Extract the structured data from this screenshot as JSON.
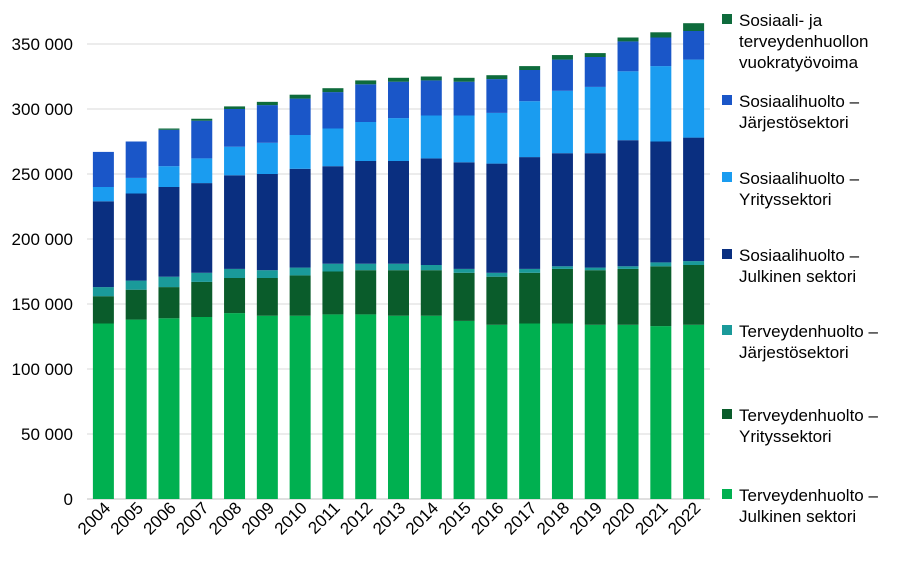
{
  "chart_data": {
    "type": "bar",
    "stacked": true,
    "title": "",
    "xlabel": "",
    "ylabel": "",
    "ylim": [
      0,
      350000
    ],
    "yticks": [
      "0",
      "50 000",
      "100 000",
      "150 000",
      "200 000",
      "250 000",
      "300 000",
      "350 000"
    ],
    "grid": true,
    "legend_position": "right",
    "categories": [
      "2004",
      "2005",
      "2006",
      "2007",
      "2008",
      "2009",
      "2010",
      "2011",
      "2012",
      "2013",
      "2014",
      "2015",
      "2016",
      "2017",
      "2018",
      "2019",
      "2020",
      "2021",
      "2022"
    ],
    "series": [
      {
        "name": "Terveydenhuolto –\nJulkinen sektori",
        "color": "#00b050",
        "values": [
          135000,
          138000,
          139000,
          140000,
          143000,
          141000,
          141000,
          142000,
          142000,
          141000,
          141000,
          137000,
          134000,
          135000,
          135000,
          134000,
          134000,
          133000,
          134000
        ]
      },
      {
        "name": "Terveydenhuolto –\nYrityssektori",
        "color": "#0a5c2b",
        "values": [
          21000,
          23000,
          24000,
          27000,
          27000,
          29000,
          31000,
          33000,
          34000,
          35000,
          35000,
          37000,
          37000,
          39000,
          42000,
          42000,
          43000,
          46000,
          46000
        ]
      },
      {
        "name": "Terveydenhuolto –\nJärjestösektori",
        "color": "#1a9a9a",
        "values": [
          7000,
          7000,
          8000,
          7000,
          7000,
          6000,
          6000,
          6000,
          5000,
          5000,
          4000,
          3000,
          3000,
          3000,
          2000,
          2000,
          2000,
          3000,
          3000
        ]
      },
      {
        "name": "Sosiaalihuolto –\nJulkinen sektori",
        "color": "#0a2f80",
        "values": [
          66000,
          67000,
          69000,
          69000,
          72000,
          74000,
          76000,
          75000,
          79000,
          79000,
          82000,
          82000,
          84000,
          86000,
          87000,
          88000,
          97000,
          93000,
          95000
        ]
      },
      {
        "name": "Sosiaalihuolto –\nYrityssektori",
        "color": "#1a9cf0",
        "values": [
          11000,
          12000,
          16000,
          19000,
          22000,
          24000,
          26000,
          29000,
          30000,
          33000,
          33000,
          36000,
          39000,
          43000,
          48000,
          51000,
          53000,
          58000,
          60000
        ]
      },
      {
        "name": "Sosiaalihuolto –\nJärjestösektori",
        "color": "#1a56c8",
        "values": [
          27000,
          28000,
          28000,
          29000,
          29000,
          29000,
          28000,
          28000,
          29000,
          28000,
          27000,
          26000,
          26000,
          24000,
          24000,
          23000,
          23000,
          22000,
          22000
        ]
      },
      {
        "name": "Sosiaali- ja\nterveydenhuollon\nvuokratyövoima",
        "color": "#0e6b3c",
        "values": [
          0,
          0,
          1000,
          1500,
          2000,
          2500,
          3000,
          3000,
          3000,
          3000,
          3000,
          3000,
          3000,
          3000,
          3500,
          3000,
          3000,
          4000,
          6000
        ]
      }
    ]
  }
}
